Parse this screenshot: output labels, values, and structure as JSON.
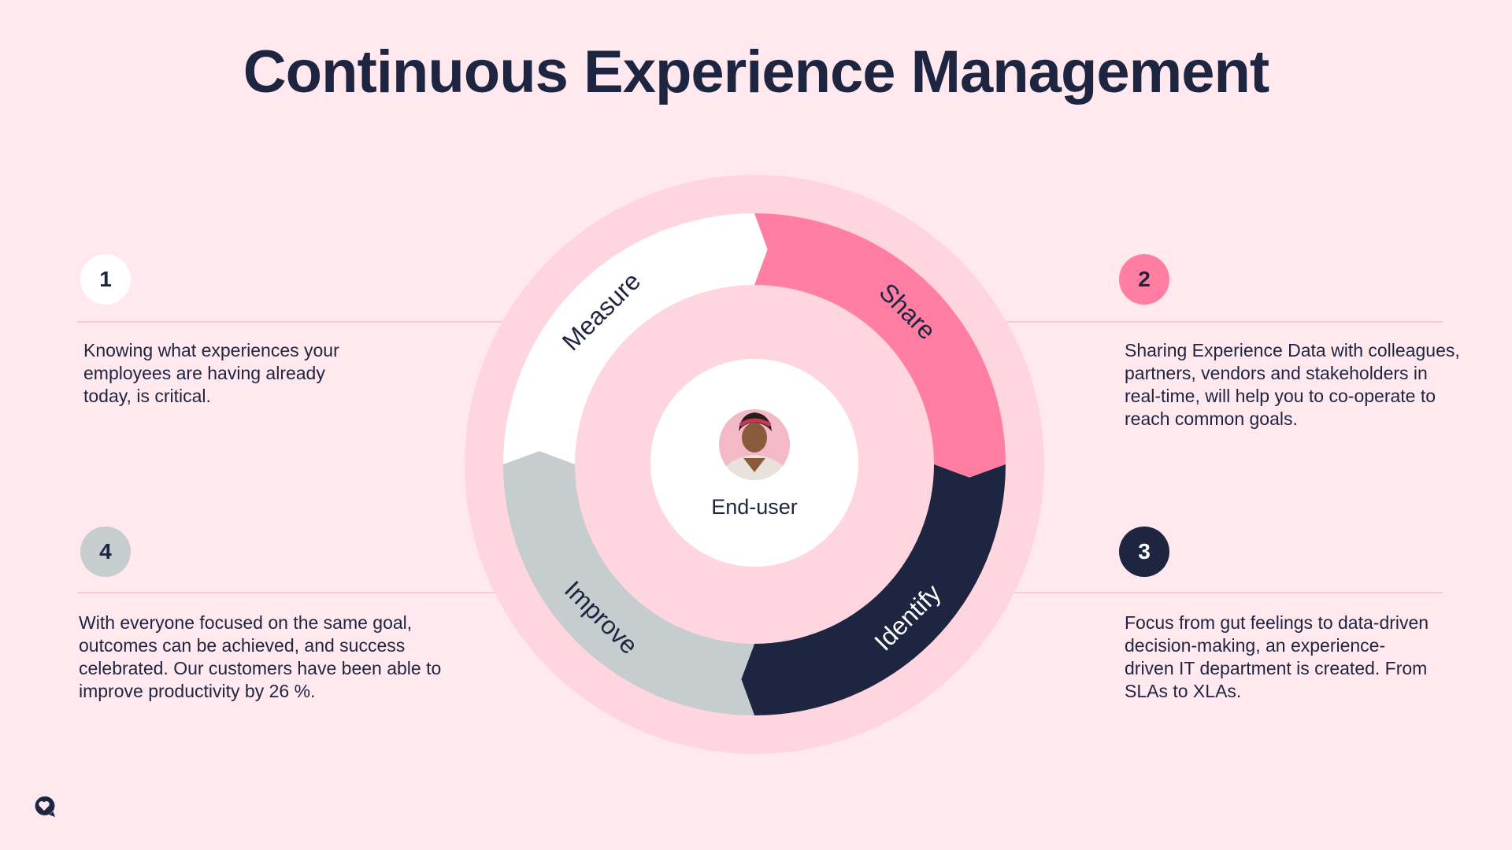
{
  "title": "Continuous Experience Management",
  "colors": {
    "background": "#FFE8EE",
    "outer_ring": "#FFD6E0",
    "measure": "#FFFFFF",
    "share": "#FF7EA2",
    "identify": "#1E2540",
    "improve": "#C5CDCE",
    "text_dark": "#1E2540"
  },
  "center": {
    "label": "End-user",
    "avatar_icon": "person-avatar"
  },
  "cycle": [
    {
      "label": "Measure",
      "color": "#FFFFFF",
      "text_color": "#1E2540"
    },
    {
      "label": "Share",
      "color": "#FF7EA2",
      "text_color": "#1E2540"
    },
    {
      "label": "Identify",
      "color": "#1E2540",
      "text_color": "#FFFFFF"
    },
    {
      "label": "Improve",
      "color": "#C5CDCE",
      "text_color": "#1E2540"
    }
  ],
  "steps": [
    {
      "number": "1",
      "badge_color": "#FFFFFF",
      "number_color": "#1E2540",
      "text": "Knowing what experiences your employees are having already today, is critical."
    },
    {
      "number": "2",
      "badge_color": "#FF7EA2",
      "number_color": "#1E2540",
      "text": "Sharing Experience Data with colleagues, partners, vendors and stakeholders in real-time, will help you to co-operate to reach common goals."
    },
    {
      "number": "3",
      "badge_color": "#1E2540",
      "number_color": "#FFFFFF",
      "text": "Focus from gut feelings to data-driven decision-making, an experience-driven IT department is created. From SLAs to XLAs."
    },
    {
      "number": "4",
      "badge_color": "#C5CDCE",
      "number_color": "#1E2540",
      "text": "With everyone focused on the same goal, outcomes can be achieved, and success celebrated. Our customers have been able to improve productivity by 26 %."
    }
  ],
  "logo_icon": "heart-speech-bubble-icon"
}
